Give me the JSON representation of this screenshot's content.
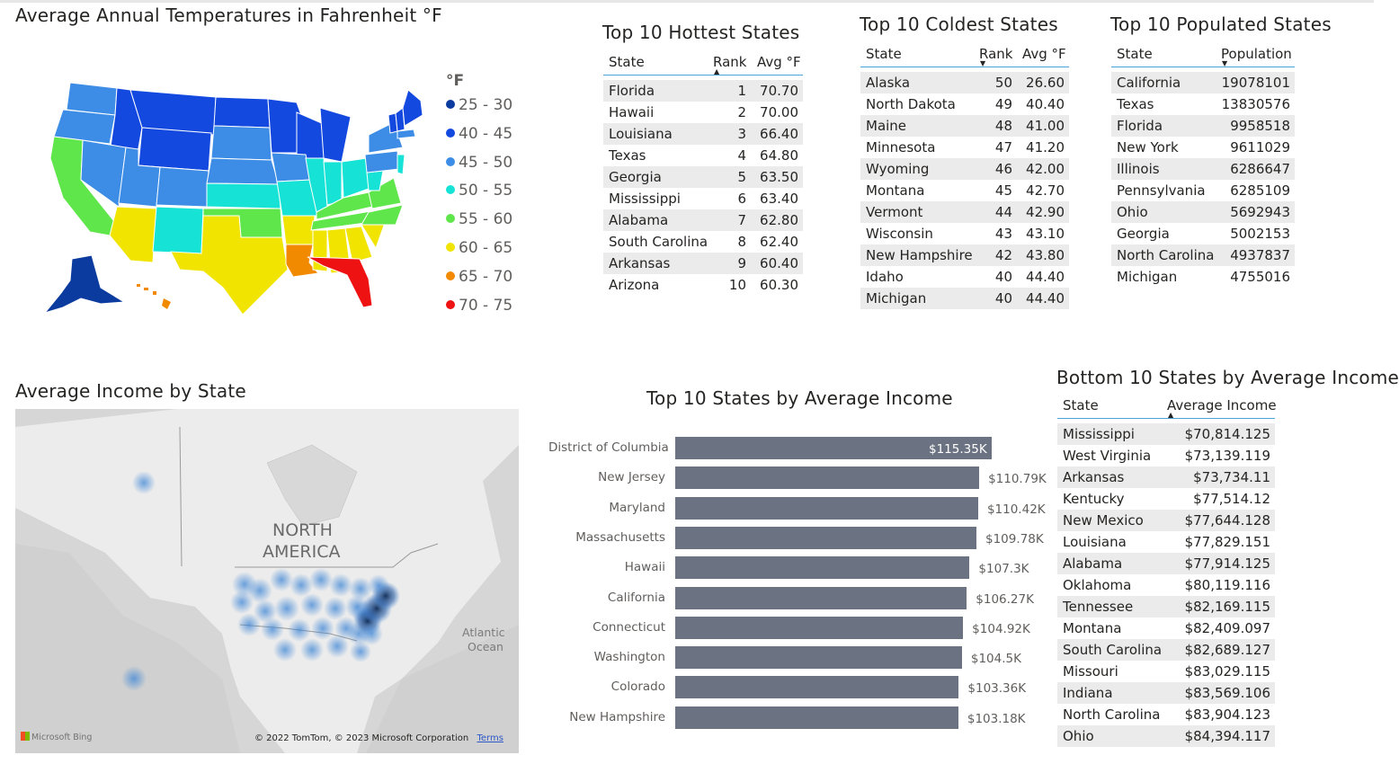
{
  "temp_map": {
    "title": "Average Annual Temperatures in Fahrenheit °F",
    "legend_title": "°F",
    "legend": [
      {
        "label": "25 - 30",
        "color": "#0b3b9e"
      },
      {
        "label": "40 - 45",
        "color": "#1449e0"
      },
      {
        "label": "45 - 50",
        "color": "#3d8de6"
      },
      {
        "label": "50 - 55",
        "color": "#16e3d6"
      },
      {
        "label": "55 - 60",
        "color": "#5fe64a"
      },
      {
        "label": "60 - 65",
        "color": "#f0e400"
      },
      {
        "label": "65 - 70",
        "color": "#f28a00"
      },
      {
        "label": "70 - 75",
        "color": "#ee1212"
      }
    ]
  },
  "hottest": {
    "title": "Top 10 Hottest States",
    "columns": [
      "State",
      "Rank",
      "Avg °F"
    ],
    "rows": [
      [
        "Florida",
        "1",
        "70.70"
      ],
      [
        "Hawaii",
        "2",
        "70.00"
      ],
      [
        "Louisiana",
        "3",
        "66.40"
      ],
      [
        "Texas",
        "4",
        "64.80"
      ],
      [
        "Georgia",
        "5",
        "63.50"
      ],
      [
        "Mississippi",
        "6",
        "63.40"
      ],
      [
        "Alabama",
        "7",
        "62.80"
      ],
      [
        "South Carolina",
        "8",
        "62.40"
      ],
      [
        "Arkansas",
        "9",
        "60.40"
      ],
      [
        "Arizona",
        "10",
        "60.30"
      ]
    ]
  },
  "coldest": {
    "title": "Top 10 Coldest States",
    "columns": [
      "State",
      "Rank",
      "Avg °F"
    ],
    "rows": [
      [
        "Alaska",
        "50",
        "26.60"
      ],
      [
        "North Dakota",
        "49",
        "40.40"
      ],
      [
        "Maine",
        "48",
        "41.00"
      ],
      [
        "Minnesota",
        "47",
        "41.20"
      ],
      [
        "Wyoming",
        "46",
        "42.00"
      ],
      [
        "Montana",
        "45",
        "42.70"
      ],
      [
        "Vermont",
        "44",
        "42.90"
      ],
      [
        "Wisconsin",
        "43",
        "43.10"
      ],
      [
        "New Hampshire",
        "42",
        "43.80"
      ],
      [
        "Idaho",
        "40",
        "44.40"
      ],
      [
        "Michigan",
        "40",
        "44.40"
      ]
    ]
  },
  "populated": {
    "title": "Top 10 Populated States",
    "columns": [
      "State",
      "Population"
    ],
    "rows": [
      [
        "California",
        "19078101"
      ],
      [
        "Texas",
        "13830576"
      ],
      [
        "Florida",
        "9958518"
      ],
      [
        "New York",
        "9611029"
      ],
      [
        "Illinois",
        "6286647"
      ],
      [
        "Pennsylvania",
        "6285109"
      ],
      [
        "Ohio",
        "5692943"
      ],
      [
        "Georgia",
        "5002153"
      ],
      [
        "North Carolina",
        "4937837"
      ],
      [
        "Michigan",
        "4755016"
      ]
    ]
  },
  "income_map": {
    "title": "Average Income by State",
    "label_north": "NORTH",
    "label_america": "AMERICA",
    "label_atlantic": "Atlantic",
    "label_ocean": "Ocean",
    "bing": "Microsoft Bing",
    "copyright": "© 2022 TomTom, © 2023 Microsoft Corporation",
    "terms": "Terms"
  },
  "bottom_income": {
    "title": "Bottom 10 States by Average Income",
    "columns": [
      "State",
      "Average Income"
    ],
    "rows": [
      [
        "Mississippi",
        "$70,814.125"
      ],
      [
        "West Virginia",
        "$73,139.119"
      ],
      [
        "Arkansas",
        "$73,734.11"
      ],
      [
        "Kentucky",
        "$77,514.12"
      ],
      [
        "New Mexico",
        "$77,644.128"
      ],
      [
        "Louisiana",
        "$77,829.151"
      ],
      [
        "Alabama",
        "$77,914.125"
      ],
      [
        "Oklahoma",
        "$80,119.116"
      ],
      [
        "Tennessee",
        "$82,169.115"
      ],
      [
        "Montana",
        "$82,409.097"
      ],
      [
        "South Carolina",
        "$82,689.127"
      ],
      [
        "Missouri",
        "$83,029.115"
      ],
      [
        "Indiana",
        "$83,569.106"
      ],
      [
        "North Carolina",
        "$83,904.123"
      ],
      [
        "Ohio",
        "$84,394.117"
      ]
    ]
  },
  "chart_data": {
    "type": "bar",
    "orientation": "horizontal",
    "title": "Top 10 States by Average Income",
    "categories": [
      "District of Columbia",
      "New Jersey",
      "Maryland",
      "Massachusetts",
      "Hawaii",
      "California",
      "Connecticut",
      "Washington",
      "Colorado",
      "New Hampshire"
    ],
    "values": [
      115350,
      110790,
      110420,
      109780,
      107300,
      106270,
      104920,
      104500,
      103360,
      103180
    ],
    "labels": [
      "$115.35K",
      "$110.79K",
      "$110.42K",
      "$109.78K",
      "$107.3K",
      "$106.27K",
      "$104.92K",
      "$104.5K",
      "$103.36K",
      "$103.18K"
    ],
    "bar_color": "#6b7281"
  }
}
